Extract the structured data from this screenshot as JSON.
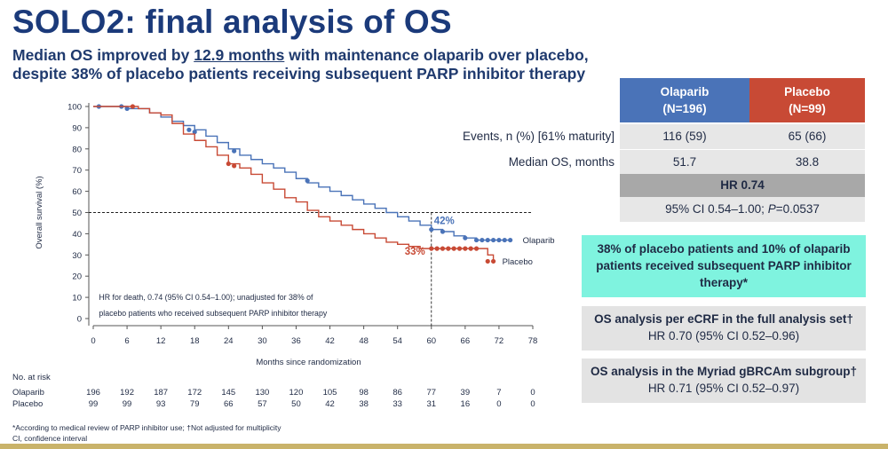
{
  "header": {
    "title": "SOLO2: final analysis of OS",
    "subtitle_line1_pre": "Median OS improved by ",
    "subtitle_line1_hl": "12.9 months",
    "subtitle_line1_post": " with maintenance olaparib over placebo,",
    "subtitle_line2": "despite 38% of placebo patients receiving subsequent PARP inhibitor therapy"
  },
  "chart_data": {
    "type": "line",
    "title": "",
    "xlabel": "Months since randomization",
    "ylabel": "Overall survival (%)",
    "xlim": [
      0,
      78
    ],
    "ylim": [
      0,
      100
    ],
    "xticks": [
      0,
      6,
      12,
      18,
      24,
      30,
      36,
      42,
      48,
      54,
      60,
      66,
      72,
      78
    ],
    "yticks": [
      0,
      10,
      20,
      30,
      40,
      50,
      60,
      70,
      80,
      90,
      100
    ],
    "reference_lines": {
      "median_y": 50,
      "x": 60
    },
    "series": [
      {
        "name": "Olaparib",
        "color": "#4a73b8",
        "points": [
          [
            0,
            100
          ],
          [
            2,
            100
          ],
          [
            4,
            100
          ],
          [
            6,
            99
          ],
          [
            8,
            99
          ],
          [
            10,
            97
          ],
          [
            12,
            95
          ],
          [
            14,
            93
          ],
          [
            16,
            91
          ],
          [
            18,
            89
          ],
          [
            20,
            86
          ],
          [
            22,
            83
          ],
          [
            24,
            80
          ],
          [
            26,
            77
          ],
          [
            28,
            75
          ],
          [
            30,
            73
          ],
          [
            32,
            71
          ],
          [
            34,
            69
          ],
          [
            36,
            66
          ],
          [
            38,
            64
          ],
          [
            40,
            62
          ],
          [
            42,
            60
          ],
          [
            44,
            58
          ],
          [
            46,
            56
          ],
          [
            48,
            54
          ],
          [
            50,
            52
          ],
          [
            52,
            50
          ],
          [
            54,
            48
          ],
          [
            56,
            46
          ],
          [
            58,
            44
          ],
          [
            60,
            42
          ],
          [
            62,
            41
          ],
          [
            64,
            39
          ],
          [
            66,
            38
          ],
          [
            68,
            37
          ],
          [
            70,
            37
          ],
          [
            72,
            37
          ],
          [
            74,
            37
          ]
        ],
        "censor": [
          [
            1,
            100
          ],
          [
            5,
            100
          ],
          [
            6,
            99
          ],
          [
            17,
            89
          ],
          [
            18,
            88
          ],
          [
            25,
            79
          ],
          [
            38,
            65
          ],
          [
            60,
            42
          ],
          [
            62,
            41
          ],
          [
            66,
            38
          ],
          [
            68,
            37
          ],
          [
            69,
            37
          ],
          [
            70,
            37
          ],
          [
            71,
            37
          ],
          [
            72,
            37
          ],
          [
            73,
            37
          ],
          [
            74,
            37
          ]
        ],
        "end_label": "Olaparib"
      },
      {
        "name": "Placebo",
        "color": "#c84a35",
        "points": [
          [
            0,
            100
          ],
          [
            4,
            100
          ],
          [
            6,
            100
          ],
          [
            8,
            99
          ],
          [
            10,
            97
          ],
          [
            12,
            96
          ],
          [
            14,
            92
          ],
          [
            16,
            87
          ],
          [
            18,
            84
          ],
          [
            20,
            81
          ],
          [
            22,
            77
          ],
          [
            24,
            73
          ],
          [
            26,
            71
          ],
          [
            28,
            68
          ],
          [
            30,
            64
          ],
          [
            32,
            61
          ],
          [
            34,
            57
          ],
          [
            36,
            55
          ],
          [
            38,
            51
          ],
          [
            40,
            48
          ],
          [
            42,
            46
          ],
          [
            44,
            44
          ],
          [
            46,
            42
          ],
          [
            48,
            40
          ],
          [
            50,
            38
          ],
          [
            52,
            36
          ],
          [
            54,
            35
          ],
          [
            56,
            34
          ],
          [
            58,
            33
          ],
          [
            60,
            33
          ],
          [
            62,
            33
          ],
          [
            64,
            33
          ],
          [
            66,
            33
          ],
          [
            68,
            33
          ],
          [
            70,
            30
          ],
          [
            71,
            27
          ]
        ],
        "censor": [
          [
            7,
            100
          ],
          [
            24,
            73
          ],
          [
            25,
            72
          ],
          [
            60,
            33
          ],
          [
            61,
            33
          ],
          [
            62,
            33
          ],
          [
            63,
            33
          ],
          [
            64,
            33
          ],
          [
            65,
            33
          ],
          [
            66,
            33
          ],
          [
            67,
            33
          ],
          [
            68,
            33
          ],
          [
            70,
            27
          ],
          [
            71,
            27
          ]
        ],
        "end_label": "Placebo"
      }
    ],
    "annotations": [
      {
        "text": "42%",
        "x": 60,
        "y": 42,
        "color": "#4a73b8"
      },
      {
        "text": "33%",
        "x": 60,
        "y": 33,
        "color": "#c84a35"
      },
      {
        "text": "HR for death, 0.74 (95% CI 0.54–1.00); unadjusted for 38% of",
        "x": 1,
        "y": 10
      },
      {
        "text": "placebo patients who received subsequent PARP inhibitor therapy",
        "x": 1,
        "y": 3
      }
    ]
  },
  "risk": {
    "title": "No. at risk",
    "rows": [
      {
        "label": "Olaparib",
        "values": [
          "196",
          "192",
          "187",
          "172",
          "145",
          "130",
          "120",
          "105",
          "98",
          "86",
          "77",
          "39",
          "7",
          "0"
        ]
      },
      {
        "label": "Placebo",
        "values": [
          "99",
          "99",
          "93",
          "79",
          "66",
          "57",
          "50",
          "42",
          "38",
          "33",
          "31",
          "16",
          "0",
          "0"
        ]
      }
    ]
  },
  "footnote": {
    "line1": "*According to medical review of PARP inhibitor use; †Not adjusted for multiplicity",
    "line2": "CI, confidence interval"
  },
  "table": {
    "olaparib_line1": "Olaparib",
    "olaparib_line2": "(N=196)",
    "placebo_line1": "Placebo",
    "placebo_line2": "(N=99)",
    "rows": [
      {
        "label": "Events, n (%) [61% maturity]",
        "olaparib": "116 (59)",
        "placebo": "65 (66)"
      },
      {
        "label": "Median OS, months",
        "olaparib": "51.7",
        "placebo": "38.8"
      }
    ],
    "hr": "HR 0.74",
    "ci_pre": "95% CI 0.54–1.00; ",
    "ci_p": "P",
    "ci_post": "=0.0537"
  },
  "boxes": {
    "teal": "38% of placebo patients and 10% of olaparib patients received subsequent PARP inhibitor therapy*",
    "g1_title": "OS analysis per eCRF in the full analysis set†",
    "g1_value": "HR 0.70 (95% CI 0.52–0.96)",
    "g2_title": "OS analysis in the Myriad gBRCAm subgroup†",
    "g2_value": "HR 0.71 (95% CI 0.52–0.97)"
  },
  "colors": {
    "olaparib": "#4a73b8",
    "placebo": "#c84a35",
    "teal": "#7ff3df",
    "title": "#1b3a7a"
  }
}
